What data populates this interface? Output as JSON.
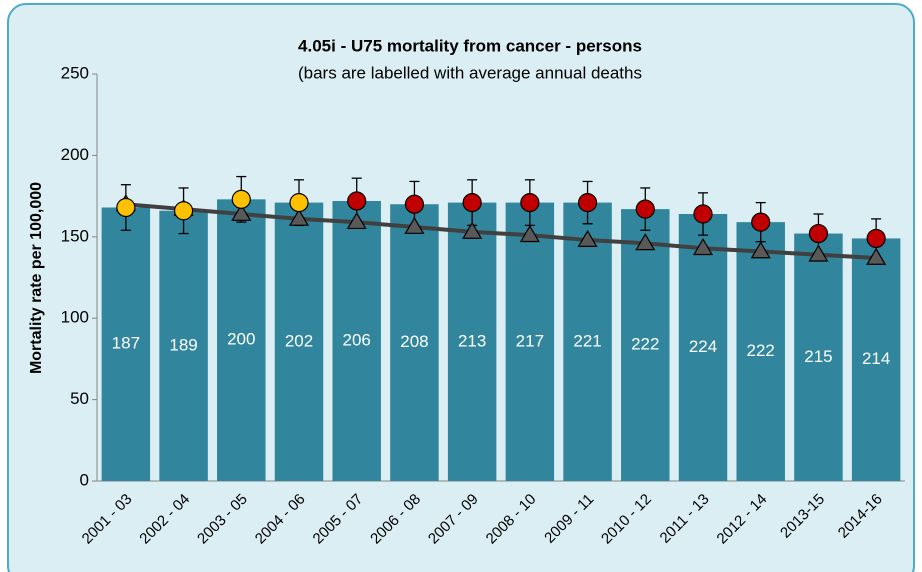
{
  "chart_data": {
    "type": "bar",
    "title": "4.05i - U75 mortality from cancer - persons",
    "subtitle": "(bars are labelled with average annual deaths",
    "y_label": "Mortality rate per 100,000",
    "categories": [
      "2001 - 03",
      "2002 - 04",
      "2003 - 05",
      "2004 - 06",
      "2005 - 07",
      "2006 - 08",
      "2007 - 09",
      "2008 - 10",
      "2009 - 11",
      "2010 - 12",
      "2011 - 13",
      "2012 - 14",
      "2013-15",
      "2014-16"
    ],
    "ylim": [
      0,
      250
    ],
    "yticks": [
      0,
      50,
      100,
      150,
      200,
      250
    ],
    "bars": {
      "color": "#31859c",
      "values": [
        168,
        166,
        173,
        171,
        172,
        170,
        171,
        171,
        171,
        167,
        164,
        159,
        152,
        149
      ],
      "deaths": [
        187,
        189,
        200,
        202,
        206,
        208,
        213,
        217,
        221,
        222,
        224,
        222,
        215,
        214
      ]
    },
    "points": {
      "values": [
        168,
        166,
        173,
        171,
        172,
        170,
        171,
        171,
        171,
        167,
        164,
        159,
        152,
        149
      ],
      "errors": [
        14,
        14,
        14,
        14,
        14,
        14,
        14,
        14,
        13,
        13,
        13,
        12,
        12,
        12
      ],
      "colors": [
        "#ffc000",
        "#ffc000",
        "#ffc000",
        "#ffc000",
        "#c00000",
        "#c00000",
        "#c00000",
        "#c00000",
        "#c00000",
        "#c00000",
        "#c00000",
        "#c00000",
        "#c00000",
        "#c00000"
      ]
    },
    "trend": {
      "color": "#404040",
      "marker_color": "#595959",
      "values": [
        170,
        167,
        164,
        161,
        159,
        156,
        153,
        151,
        148,
        146,
        143,
        141,
        139,
        137
      ]
    }
  }
}
